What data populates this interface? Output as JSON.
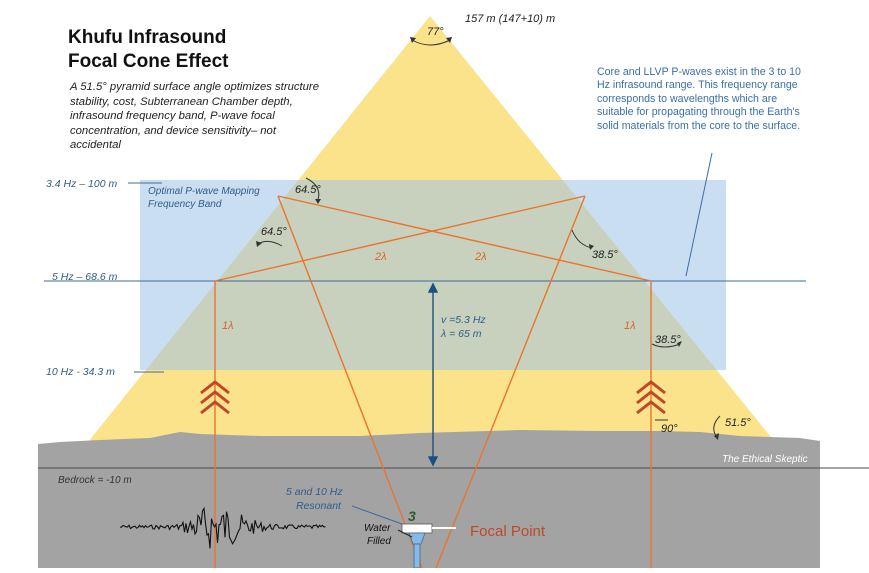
{
  "title_line1": "Khufu Infrasound",
  "title_line2": "Focal Cone Effect",
  "subtitle": "A 51.5° pyramid surface angle optimizes structure stability, cost, Subterranean Chamber depth, infrasound frequency band, P-wave focal concentration, and device sensitivity– not accidental",
  "note": "Core and LLVP P-waves exist in the 3 to 10 Hz infrasound range. This frequency range corresponds to wavelengths which are suitable for propagating through the Earth's solid materials from the core to the surface.",
  "height_label": "157 m (147+10) m",
  "band_label_line1": "Optimal P-wave Mapping",
  "band_label_line2": "Frequency Band",
  "freq_labels": {
    "f34": "3.4 Hz – 100 m",
    "f5": "5 Hz – 68.6 m",
    "f10": "10 Hz - 34.3 m"
  },
  "angles": {
    "apex": "77°",
    "left_upper": "64.5°",
    "left_lower": "64.5°",
    "right_upper": "38.5°",
    "right_lower": "38.5°",
    "base_right": "51.5°",
    "right_angle": "90°"
  },
  "wave_labels": {
    "two_lambda_left": "2λ",
    "two_lambda_right": "2λ",
    "one_lambda_left": "1λ",
    "one_lambda_right": "1λ",
    "velocity": "v =5.3 Hz",
    "lambda": "λ = 65 m"
  },
  "bedrock_label": "Bedrock = -10 m",
  "resonant_line1": "5 and 10 Hz",
  "resonant_line2": "Resonant",
  "water_line1": "Water",
  "water_line2": "Filled",
  "chamber_number": "3",
  "focal_point": "Focal Point",
  "watermark": "The Ethical Skeptic",
  "colors": {
    "pyramid": "#fbe38c",
    "band": "#b9d5ee",
    "ground": "#a3a3a3",
    "rays": "#e8742e",
    "level_lines": "#3d6c99",
    "arrows": "#c0482a",
    "axis": "#1f4f7c"
  }
}
